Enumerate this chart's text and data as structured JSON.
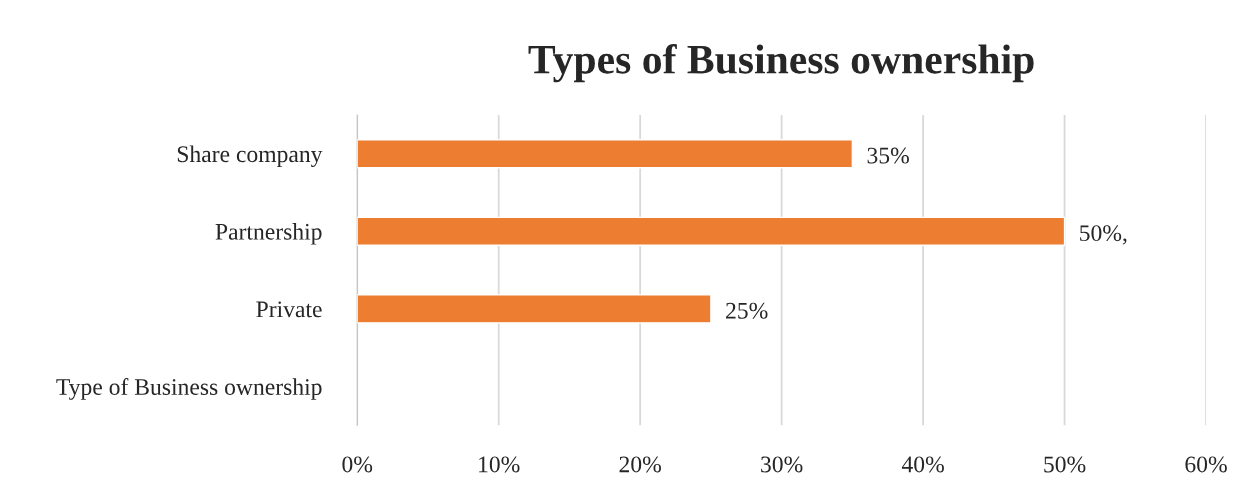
{
  "chart_data": {
    "type": "bar",
    "orientation": "horizontal",
    "title": "Types of Business ownership",
    "categories": [
      "Share company",
      "Partnership",
      "Private",
      "Type of Business ownership"
    ],
    "values": [
      35,
      50,
      25,
      null
    ],
    "value_labels": [
      "35%",
      "50%,",
      "25%",
      null
    ],
    "color": "#ed7d31",
    "xlim": [
      0,
      60
    ],
    "xticks": [
      {
        "value": 0,
        "label": "0%"
      },
      {
        "value": 10,
        "label": "10%"
      },
      {
        "value": 20,
        "label": "20%"
      },
      {
        "value": 30,
        "label": "30%"
      },
      {
        "value": 40,
        "label": "40%"
      },
      {
        "value": 50,
        "label": "50%"
      },
      {
        "value": 60,
        "label": "60%"
      }
    ],
    "grid": "x",
    "legend": false
  }
}
